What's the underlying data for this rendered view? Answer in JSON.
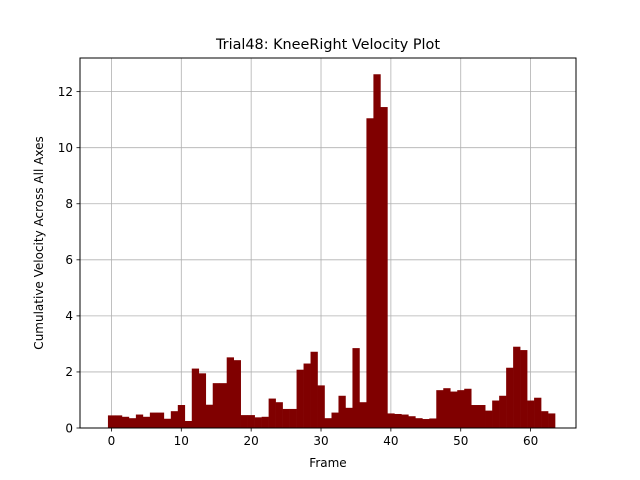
{
  "chart_data": {
    "type": "bar",
    "title": "Trial48: KneeRight Velocity Plot",
    "xlabel": "Frame",
    "ylabel": "Cumulative Velocity Across All Axes",
    "xlim": [
      -4.5,
      66.5
    ],
    "ylim": [
      0,
      13.2
    ],
    "xticks": [
      0,
      10,
      20,
      30,
      40,
      50,
      60
    ],
    "yticks": [
      0,
      2,
      4,
      6,
      8,
      10,
      12
    ],
    "grid": true,
    "bar_color": "#800000",
    "x": [
      0,
      1,
      2,
      3,
      4,
      5,
      6,
      7,
      8,
      9,
      10,
      11,
      12,
      13,
      14,
      15,
      16,
      17,
      18,
      19,
      20,
      21,
      22,
      23,
      24,
      25,
      26,
      27,
      28,
      29,
      30,
      31,
      32,
      33,
      34,
      35,
      36,
      37,
      38,
      39,
      40,
      41,
      42,
      43,
      44,
      45,
      46,
      47,
      48,
      49,
      50,
      51,
      52,
      53,
      54,
      55,
      56,
      57,
      58,
      59,
      60,
      61,
      62,
      63
    ],
    "values": [
      0.45,
      0.45,
      0.4,
      0.35,
      0.48,
      0.4,
      0.55,
      0.55,
      0.33,
      0.6,
      0.82,
      0.25,
      2.12,
      1.95,
      0.83,
      1.6,
      1.6,
      2.52,
      2.42,
      0.46,
      0.46,
      0.38,
      0.4,
      1.05,
      0.92,
      0.68,
      0.68,
      2.08,
      2.3,
      2.72,
      1.52,
      0.35,
      0.55,
      1.15,
      0.72,
      2.85,
      0.92,
      11.05,
      12.62,
      11.45,
      0.52,
      0.5,
      0.48,
      0.42,
      0.35,
      0.32,
      0.34,
      1.35,
      1.42,
      1.3,
      1.35,
      1.4,
      0.82,
      0.82,
      0.62,
      0.98,
      1.15,
      2.15,
      2.9,
      2.78,
      0.98,
      1.08,
      0.6,
      0.52
    ]
  }
}
